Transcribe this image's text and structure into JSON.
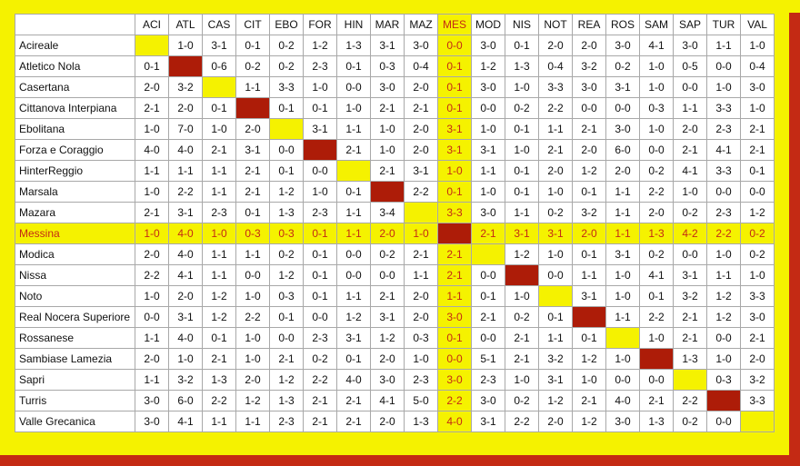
{
  "highlight": {
    "team_index": 9,
    "color": "#f5f200",
    "text_color": "#c42a14",
    "self_color": "#ad1c08"
  },
  "columns": [
    "ACI",
    "ATL",
    "CAS",
    "CIT",
    "EBO",
    "FOR",
    "HIN",
    "MAR",
    "MAZ",
    "MES",
    "MOD",
    "NIS",
    "NOT",
    "REA",
    "ROS",
    "SAM",
    "SAP",
    "TUR",
    "VAL"
  ],
  "rows": [
    {
      "team": "Acireale",
      "results": [
        "",
        "1-0",
        "3-1",
        "0-1",
        "0-2",
        "1-2",
        "1-3",
        "3-1",
        "3-0",
        "0-0",
        "3-0",
        "0-1",
        "2-0",
        "2-0",
        "3-0",
        "4-1",
        "3-0",
        "1-1",
        "1-0"
      ]
    },
    {
      "team": "Atletico Nola",
      "results": [
        "0-1",
        "",
        "0-6",
        "0-2",
        "0-2",
        "2-3",
        "0-1",
        "0-3",
        "0-4",
        "0-1",
        "1-2",
        "1-3",
        "0-4",
        "3-2",
        "0-2",
        "1-0",
        "0-5",
        "0-0",
        "0-4"
      ]
    },
    {
      "team": "Casertana",
      "results": [
        "2-0",
        "3-2",
        "",
        "1-1",
        "3-3",
        "1-0",
        "0-0",
        "3-0",
        "2-0",
        "0-1",
        "3-0",
        "1-0",
        "3-3",
        "3-0",
        "3-1",
        "1-0",
        "0-0",
        "1-0",
        "3-0"
      ]
    },
    {
      "team": "Cittanova Interpiana",
      "results": [
        "2-1",
        "2-0",
        "0-1",
        "",
        "0-1",
        "0-1",
        "1-0",
        "2-1",
        "2-1",
        "0-1",
        "0-0",
        "0-2",
        "2-2",
        "0-0",
        "0-0",
        "0-3",
        "1-1",
        "3-3",
        "1-0"
      ]
    },
    {
      "team": "Ebolitana",
      "results": [
        "1-0",
        "7-0",
        "1-0",
        "2-0",
        "",
        "3-1",
        "1-1",
        "1-0",
        "2-0",
        "3-1",
        "1-0",
        "0-1",
        "1-1",
        "2-1",
        "3-0",
        "1-0",
        "2-0",
        "2-3",
        "2-1"
      ]
    },
    {
      "team": "Forza e Coraggio",
      "results": [
        "4-0",
        "4-0",
        "2-1",
        "3-1",
        "0-0",
        "",
        "2-1",
        "1-0",
        "2-0",
        "3-1",
        "3-1",
        "1-0",
        "2-1",
        "2-0",
        "6-0",
        "0-0",
        "2-1",
        "4-1",
        "2-1"
      ]
    },
    {
      "team": "HinterReggio",
      "results": [
        "1-1",
        "1-1",
        "1-1",
        "2-1",
        "0-1",
        "0-0",
        "",
        "2-1",
        "3-1",
        "1-0",
        "1-1",
        "0-1",
        "2-0",
        "1-2",
        "2-0",
        "0-2",
        "4-1",
        "3-3",
        "0-1"
      ]
    },
    {
      "team": "Marsala",
      "results": [
        "1-0",
        "2-2",
        "1-1",
        "2-1",
        "1-2",
        "1-0",
        "0-1",
        "",
        "2-2",
        "0-1",
        "1-0",
        "0-1",
        "1-0",
        "0-1",
        "1-1",
        "2-2",
        "1-0",
        "0-0",
        "0-0"
      ]
    },
    {
      "team": "Mazara",
      "results": [
        "2-1",
        "3-1",
        "2-3",
        "0-1",
        "1-3",
        "2-3",
        "1-1",
        "3-4",
        "",
        "3-3",
        "3-0",
        "1-1",
        "0-2",
        "3-2",
        "1-1",
        "2-0",
        "0-2",
        "2-3",
        "1-2"
      ]
    },
    {
      "team": "Messina",
      "results": [
        "1-0",
        "4-0",
        "1-0",
        "0-3",
        "0-3",
        "0-1",
        "1-1",
        "2-0",
        "1-0",
        "",
        "2-1",
        "3-1",
        "3-1",
        "2-0",
        "1-1",
        "1-3",
        "4-2",
        "2-2",
        "0-2"
      ]
    },
    {
      "team": "Modica",
      "results": [
        "2-0",
        "4-0",
        "1-1",
        "1-1",
        "0-2",
        "0-1",
        "0-0",
        "0-2",
        "2-1",
        "2-1",
        "",
        "1-2",
        "1-0",
        "0-1",
        "3-1",
        "0-2",
        "0-0",
        "1-0",
        "0-2"
      ]
    },
    {
      "team": "Nissa",
      "results": [
        "2-2",
        "4-1",
        "1-1",
        "0-0",
        "1-2",
        "0-1",
        "0-0",
        "0-0",
        "1-1",
        "2-1",
        "0-0",
        "",
        "0-0",
        "1-1",
        "1-0",
        "4-1",
        "3-1",
        "1-1",
        "1-0"
      ]
    },
    {
      "team": "Noto",
      "results": [
        "1-0",
        "2-0",
        "1-2",
        "1-0",
        "0-3",
        "0-1",
        "1-1",
        "2-1",
        "2-0",
        "1-1",
        "0-1",
        "1-0",
        "",
        "3-1",
        "1-0",
        "0-1",
        "3-2",
        "1-2",
        "3-3"
      ]
    },
    {
      "team": "Real Nocera Superiore",
      "results": [
        "0-0",
        "3-1",
        "1-2",
        "2-2",
        "0-1",
        "0-0",
        "1-2",
        "3-1",
        "2-0",
        "3-0",
        "2-1",
        "0-2",
        "0-1",
        "",
        "1-1",
        "2-2",
        "2-1",
        "1-2",
        "3-0"
      ]
    },
    {
      "team": "Rossanese",
      "results": [
        "1-1",
        "4-0",
        "0-1",
        "1-0",
        "0-0",
        "2-3",
        "3-1",
        "1-2",
        "0-3",
        "0-1",
        "0-0",
        "2-1",
        "1-1",
        "0-1",
        "",
        "1-0",
        "2-1",
        "0-0",
        "2-1"
      ]
    },
    {
      "team": "Sambiase Lamezia",
      "results": [
        "2-0",
        "1-0",
        "2-1",
        "1-0",
        "2-1",
        "0-2",
        "0-1",
        "2-0",
        "1-0",
        "0-0",
        "5-1",
        "2-1",
        "3-2",
        "1-2",
        "1-0",
        "",
        "1-3",
        "1-0",
        "2-0"
      ]
    },
    {
      "team": "Sapri",
      "results": [
        "1-1",
        "3-2",
        "1-3",
        "2-0",
        "1-2",
        "2-2",
        "4-0",
        "3-0",
        "2-3",
        "3-0",
        "2-3",
        "1-0",
        "3-1",
        "1-0",
        "0-0",
        "0-0",
        "",
        "0-3",
        "3-2"
      ]
    },
    {
      "team": "Turris",
      "results": [
        "3-0",
        "6-0",
        "2-2",
        "1-2",
        "1-3",
        "2-1",
        "2-1",
        "4-1",
        "5-0",
        "2-2",
        "3-0",
        "0-2",
        "1-2",
        "2-1",
        "4-0",
        "2-1",
        "2-2",
        "",
        "3-3"
      ]
    },
    {
      "team": "Valle Grecanica",
      "results": [
        "3-0",
        "4-1",
        "1-1",
        "1-1",
        "2-3",
        "2-1",
        "2-1",
        "2-0",
        "1-3",
        "4-0",
        "3-1",
        "2-2",
        "2-0",
        "1-2",
        "3-0",
        "1-3",
        "0-2",
        "0-0",
        ""
      ]
    }
  ]
}
